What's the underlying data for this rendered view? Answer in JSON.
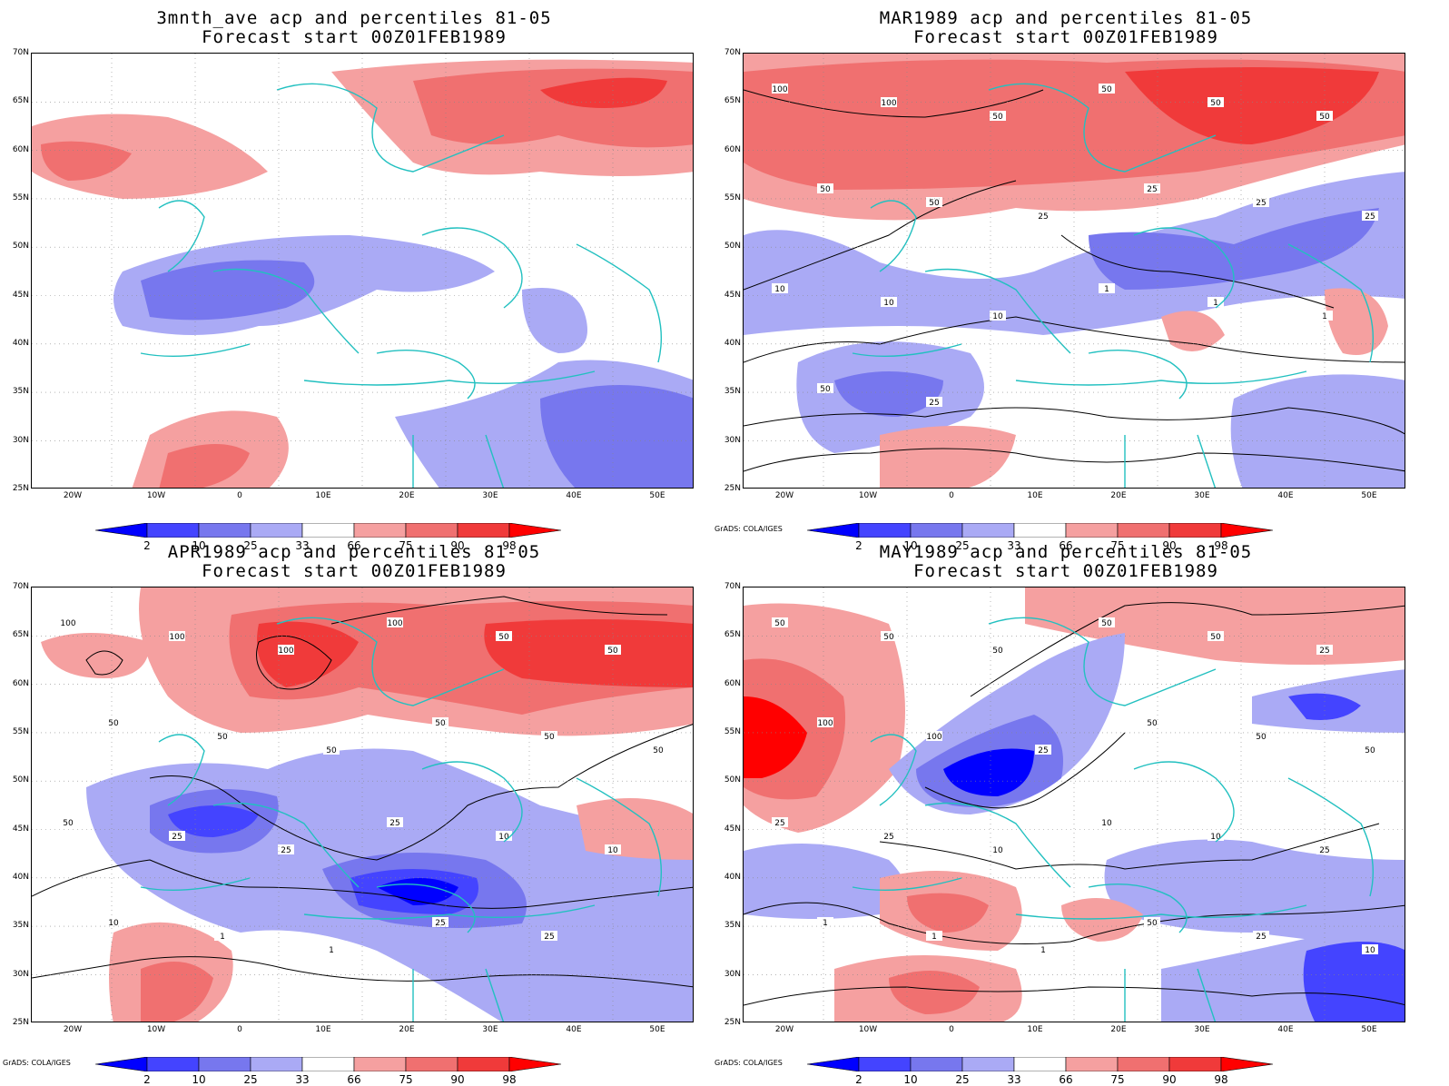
{
  "credit": "GrADS: COLA/IGES",
  "lat_labels": [
    "70N",
    "65N",
    "60N",
    "55N",
    "50N",
    "45N",
    "40N",
    "35N",
    "30N",
    "25N"
  ],
  "lon_labels": [
    "20W",
    "10W",
    "0",
    "10E",
    "20E",
    "30E",
    "40E",
    "50E"
  ],
  "colorbar": {
    "labels": [
      "2",
      "10",
      "25",
      "33",
      "66",
      "75",
      "90",
      "98"
    ],
    "colors": [
      "#0000ff",
      "#4444ff",
      "#7777ee",
      "#aaaaf5",
      "#ffffff",
      "#f5a0a0",
      "#f07070",
      "#f03a3a",
      "#ff0000"
    ]
  },
  "panels": [
    {
      "title1": "3mnth_ave acp and percentiles 81-05",
      "title2": "Forecast start 00Z01FEB1989",
      "contour_labels": [],
      "show_credit": false
    },
    {
      "title1": "MAR1989 acp and percentiles 81-05",
      "title2": "Forecast start 00Z01FEB1989",
      "contour_labels": [
        "100",
        "100",
        "50",
        "50",
        "50",
        "50",
        "50",
        "50",
        "25",
        "25",
        "25",
        "25",
        "10",
        "10",
        "10",
        "1",
        "1",
        "1",
        "50",
        "25"
      ],
      "show_credit": true
    },
    {
      "title1": "APR1989 acp and percentiles 81-05",
      "title2": "Forecast start 00Z01FEB1989",
      "contour_labels": [
        "100",
        "100",
        "100",
        "100",
        "50",
        "50",
        "50",
        "50",
        "50",
        "50",
        "50",
        "50",
        "50",
        "25",
        "25",
        "25",
        "10",
        "10",
        "10",
        "1",
        "1",
        "25",
        "25"
      ],
      "show_credit": true
    },
    {
      "title1": "MAY1989 acp and percentiles 81-05",
      "title2": "Forecast start 00Z01FEB1989",
      "contour_labels": [
        "50",
        "50",
        "50",
        "50",
        "50",
        "25",
        "100",
        "100",
        "25",
        "50",
        "50",
        "50",
        "25",
        "25",
        "10",
        "10",
        "10",
        "25",
        "1",
        "1",
        "1",
        "50",
        "25",
        "10"
      ],
      "show_credit": true
    }
  ]
}
